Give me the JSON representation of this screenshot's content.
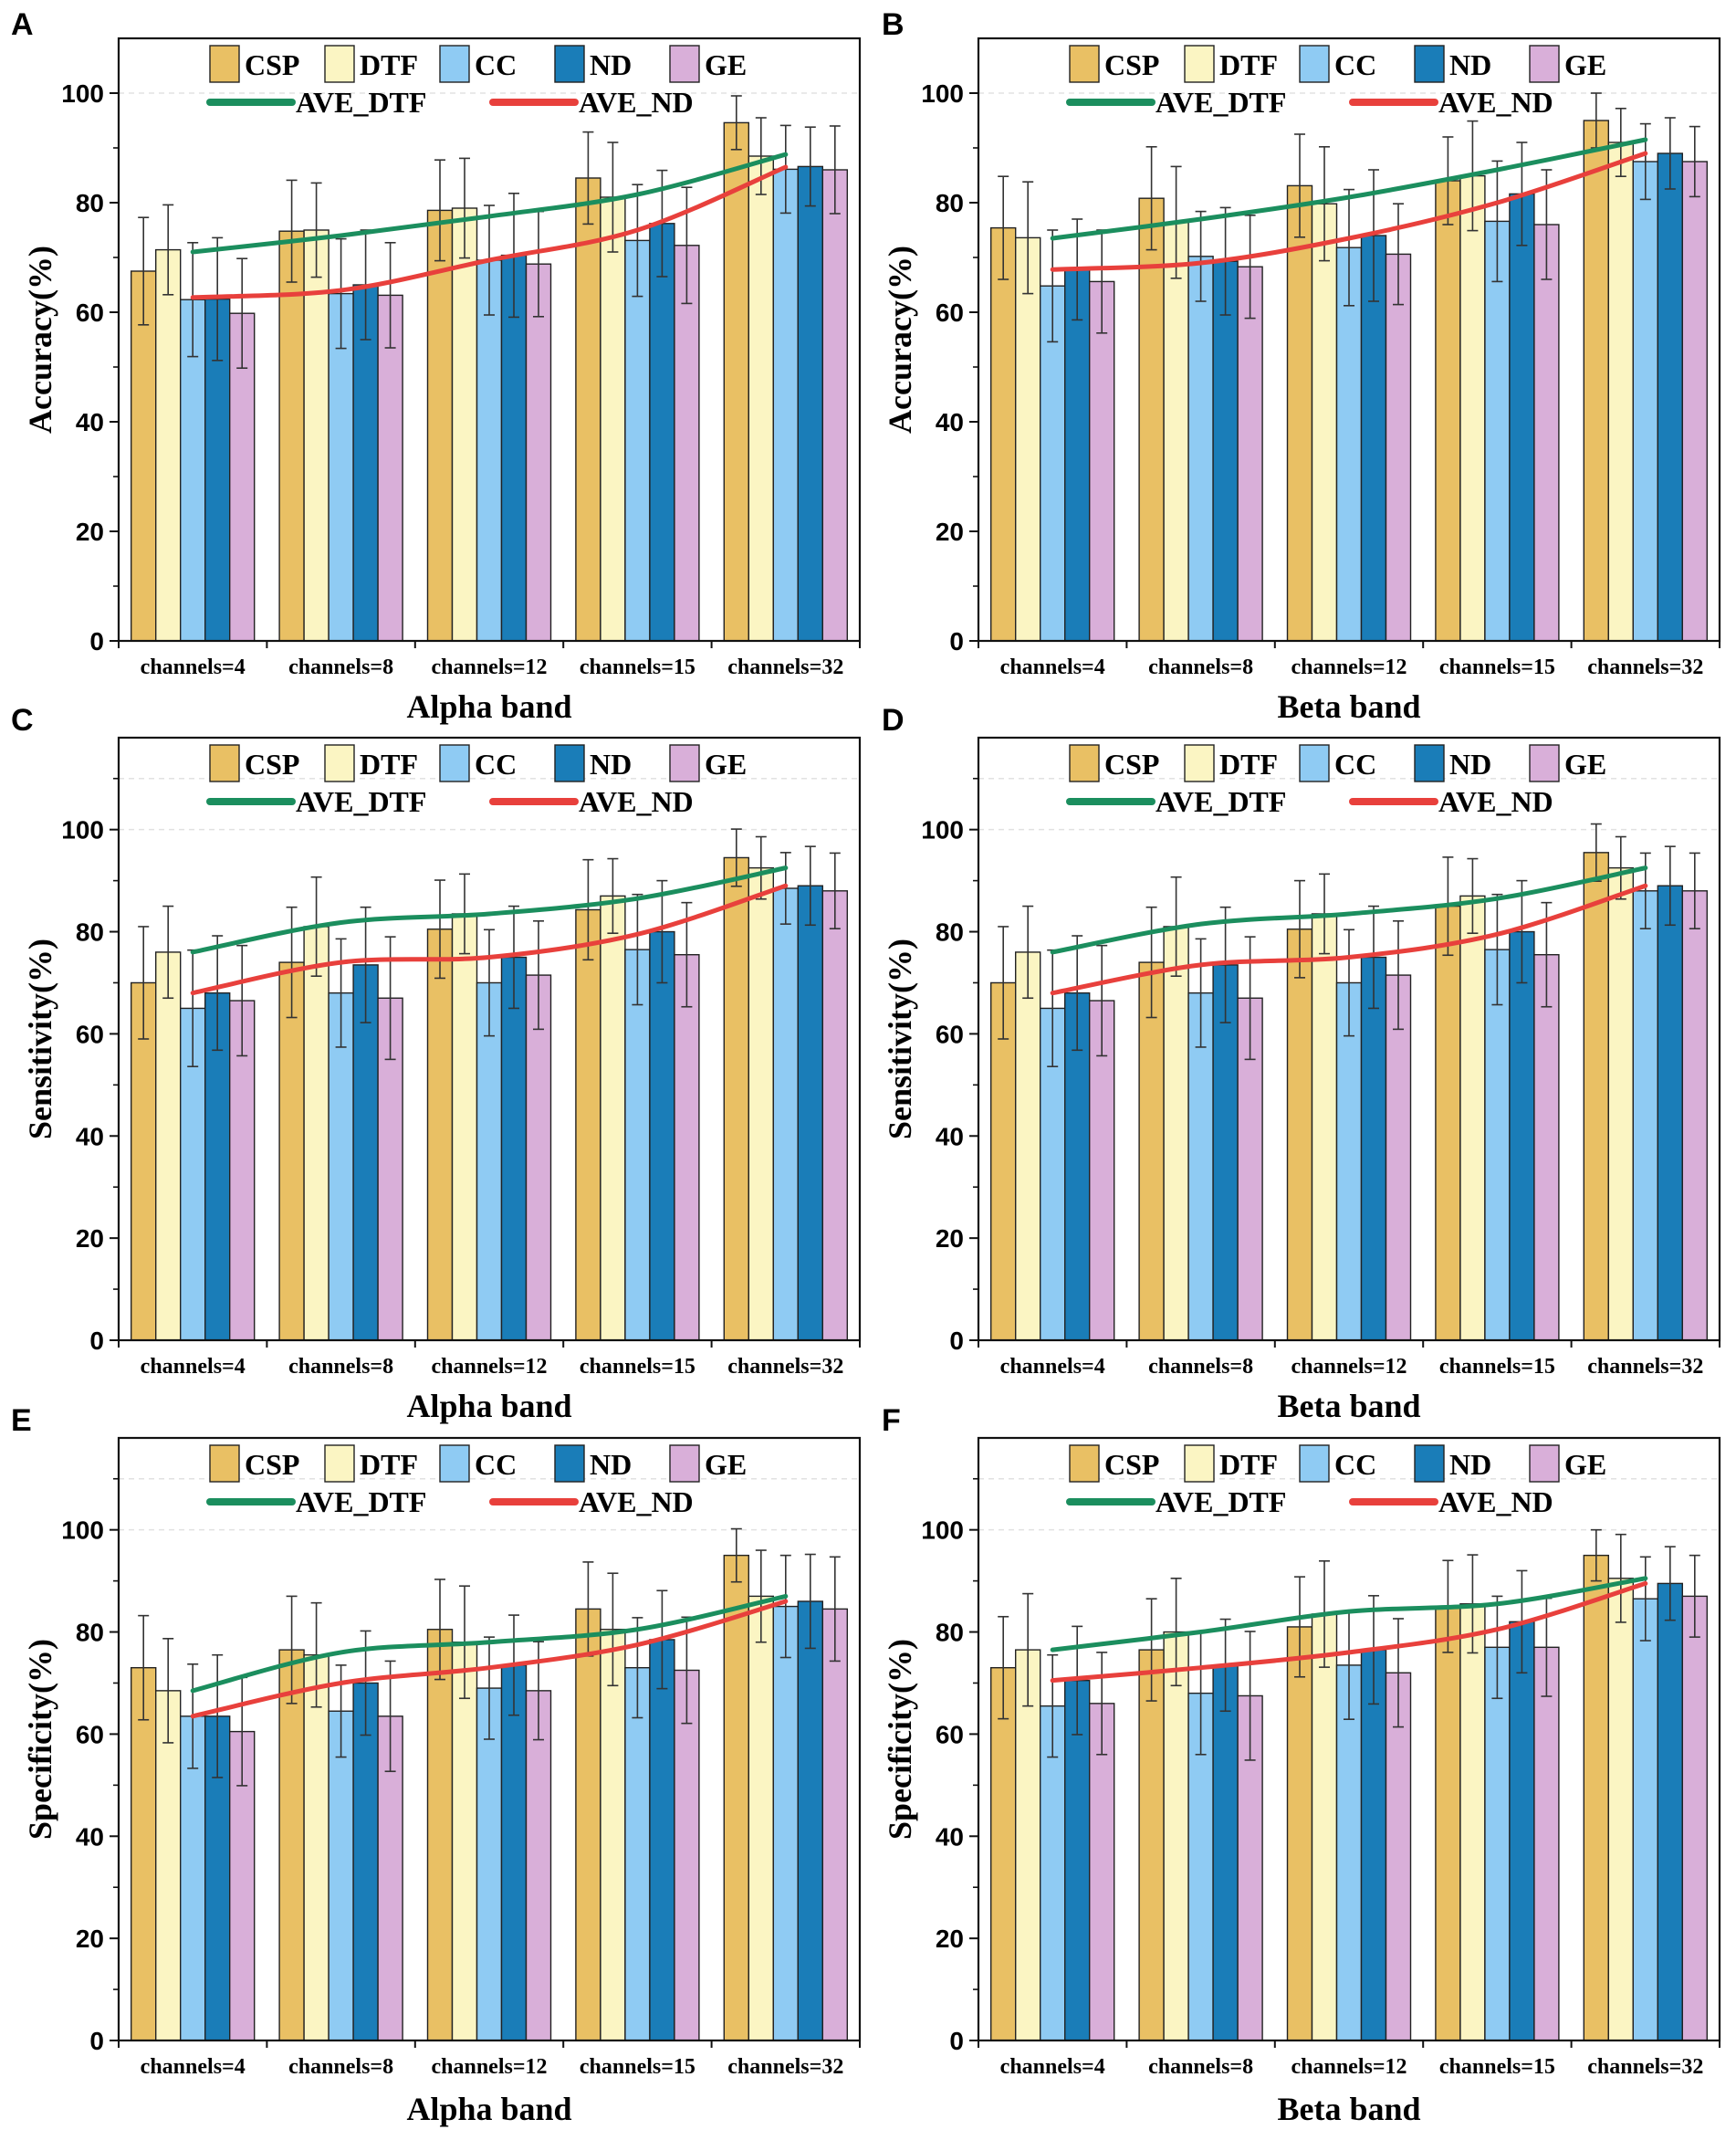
{
  "chart_data": [
    {
      "panel": "A",
      "type": "bar",
      "xlabel": "Alpha band",
      "ylabel": "Accuracy(%)",
      "ylim": [
        0,
        110
      ],
      "yticks": [
        "0",
        "20",
        "40",
        "60",
        "80",
        "100"
      ],
      "categories": [
        "channels=4",
        "channels=8",
        "channels=12",
        "channels=15",
        "channels=32"
      ],
      "series": [
        {
          "name": "CSP",
          "values": [
            67.5,
            74.8,
            78.6,
            84.5,
            94.6
          ],
          "errors": [
            9.8,
            9.3,
            9.2,
            8.4,
            4.9
          ]
        },
        {
          "name": "DTF",
          "values": [
            71.4,
            75.0,
            79.0,
            81.0,
            88.5
          ],
          "errors": [
            8.2,
            8.6,
            9.1,
            10.0,
            7.0
          ]
        },
        {
          "name": "CC",
          "values": [
            62.3,
            63.4,
            69.5,
            73.1,
            86.1
          ],
          "errors": [
            10.4,
            10.0,
            10.0,
            10.2,
            8.0
          ]
        },
        {
          "name": "ND",
          "values": [
            62.4,
            65.0,
            70.4,
            76.2,
            86.6
          ],
          "errors": [
            11.2,
            10.0,
            11.3,
            9.7,
            7.2
          ]
        },
        {
          "name": "GE",
          "values": [
            59.8,
            63.1,
            68.8,
            72.2,
            86.0
          ],
          "errors": [
            10.0,
            9.6,
            9.6,
            10.6,
            8.0
          ]
        }
      ],
      "lines": [
        {
          "name": "AVE_DTF",
          "values": [
            71.0,
            74.0,
            77.5,
            81.5,
            88.8
          ]
        },
        {
          "name": "AVE_ND",
          "values": [
            62.7,
            64.0,
            69.5,
            75.0,
            86.5
          ]
        }
      ]
    },
    {
      "panel": "B",
      "type": "bar",
      "xlabel": "Beta band",
      "ylabel": "Accuracy(%)",
      "ylim": [
        0,
        110
      ],
      "yticks": [
        "0",
        "20",
        "40",
        "60",
        "80",
        "100"
      ],
      "categories": [
        "channels=4",
        "channels=8",
        "channels=12",
        "channels=15",
        "channels=32"
      ],
      "series": [
        {
          "name": "CSP",
          "values": [
            75.4,
            80.8,
            83.1,
            84.0,
            95.0
          ],
          "errors": [
            9.4,
            9.4,
            9.4,
            8.0,
            5.0
          ]
        },
        {
          "name": "DTF",
          "values": [
            73.6,
            76.4,
            79.8,
            84.9,
            91.0
          ],
          "errors": [
            10.2,
            10.2,
            10.4,
            10.0,
            6.2
          ]
        },
        {
          "name": "CC",
          "values": [
            64.8,
            70.2,
            71.8,
            76.6,
            87.5
          ],
          "errors": [
            10.2,
            8.2,
            10.6,
            11.0,
            6.9
          ]
        },
        {
          "name": "ND",
          "values": [
            67.8,
            69.3,
            74.0,
            81.6,
            89.0
          ],
          "errors": [
            9.2,
            9.8,
            12.0,
            9.4,
            6.5
          ]
        },
        {
          "name": "GE",
          "values": [
            65.6,
            68.3,
            70.6,
            76.0,
            87.5
          ],
          "errors": [
            9.4,
            9.4,
            9.2,
            10.0,
            6.4
          ]
        }
      ],
      "lines": [
        {
          "name": "AVE_DTF",
          "values": [
            73.5,
            77.0,
            81.0,
            86.0,
            91.5
          ]
        },
        {
          "name": "AVE_ND",
          "values": [
            67.8,
            69.0,
            73.5,
            80.0,
            89.0
          ]
        }
      ]
    },
    {
      "panel": "C",
      "type": "bar",
      "xlabel": "Alpha band",
      "ylabel": "Sensitivity(%)",
      "ylim": [
        0,
        118
      ],
      "yticks": [
        "0",
        "20",
        "40",
        "60",
        "80",
        "100"
      ],
      "categories": [
        "channels=4",
        "channels=8",
        "channels=12",
        "channels=15",
        "channels=32"
      ],
      "series": [
        {
          "name": "CSP",
          "values": [
            70.0,
            74.0,
            80.5,
            84.3,
            94.5
          ],
          "errors": [
            11.0,
            10.8,
            9.6,
            9.8,
            5.6
          ]
        },
        {
          "name": "DTF",
          "values": [
            76.0,
            81.0,
            83.5,
            87.0,
            92.5
          ],
          "errors": [
            9.0,
            9.7,
            7.8,
            7.3,
            6.1
          ]
        },
        {
          "name": "CC",
          "values": [
            65.0,
            68.0,
            70.0,
            76.5,
            88.5
          ],
          "errors": [
            11.4,
            10.6,
            10.4,
            10.8,
            7.0
          ]
        },
        {
          "name": "ND",
          "values": [
            68.0,
            73.5,
            75.0,
            80.0,
            89.0
          ],
          "errors": [
            11.2,
            11.3,
            10.0,
            10.0,
            7.7
          ]
        },
        {
          "name": "GE",
          "values": [
            66.5,
            67.0,
            71.5,
            75.5,
            88.0
          ],
          "errors": [
            10.8,
            12.0,
            10.6,
            10.2,
            7.4
          ]
        }
      ],
      "lines": [
        {
          "name": "AVE_DTF",
          "values": [
            76.0,
            81.8,
            83.5,
            86.5,
            92.5
          ]
        },
        {
          "name": "AVE_ND",
          "values": [
            68.0,
            74.0,
            75.0,
            79.5,
            89.0
          ]
        }
      ]
    },
    {
      "panel": "D",
      "type": "bar",
      "xlabel": "Beta band",
      "ylabel": "Sensitivity(%)",
      "ylim": [
        0,
        118
      ],
      "yticks": [
        "0",
        "20",
        "40",
        "60",
        "80",
        "100"
      ],
      "categories": [
        "channels=4",
        "channels=8",
        "channels=12",
        "channels=15",
        "channels=32"
      ],
      "series": [
        {
          "name": "CSP",
          "values": [
            70.0,
            74.0,
            80.5,
            85.0,
            95.5
          ],
          "errors": [
            11.0,
            10.8,
            9.5,
            9.6,
            5.6
          ]
        },
        {
          "name": "DTF",
          "values": [
            76.0,
            81.0,
            83.5,
            87.0,
            92.5
          ],
          "errors": [
            9.0,
            9.7,
            7.8,
            7.3,
            6.1
          ]
        },
        {
          "name": "CC",
          "values": [
            65.0,
            68.0,
            70.0,
            76.5,
            88.0
          ],
          "errors": [
            11.4,
            10.6,
            10.4,
            10.8,
            7.4
          ]
        },
        {
          "name": "ND",
          "values": [
            68.0,
            73.5,
            75.0,
            80.0,
            89.0
          ],
          "errors": [
            11.2,
            11.3,
            10.0,
            10.0,
            7.7
          ]
        },
        {
          "name": "GE",
          "values": [
            66.5,
            67.0,
            71.5,
            75.5,
            88.0
          ],
          "errors": [
            10.8,
            12.0,
            10.6,
            10.2,
            7.4
          ]
        }
      ],
      "lines": [
        {
          "name": "AVE_DTF",
          "values": [
            76.0,
            81.5,
            83.5,
            86.5,
            92.5
          ]
        },
        {
          "name": "AVE_ND",
          "values": [
            68.0,
            73.5,
            75.0,
            79.5,
            89.0
          ]
        }
      ]
    },
    {
      "panel": "E",
      "type": "bar",
      "xlabel": "Alpha band",
      "ylabel": "Specificity(%)",
      "ylim": [
        0,
        118
      ],
      "yticks": [
        "0",
        "20",
        "40",
        "60",
        "80",
        "100"
      ],
      "categories": [
        "channels=4",
        "channels=8",
        "channels=12",
        "channels=15",
        "channels=32"
      ],
      "series": [
        {
          "name": "CSP",
          "values": [
            73.0,
            76.5,
            80.5,
            84.5,
            95.0
          ],
          "errors": [
            10.2,
            10.5,
            9.8,
            9.2,
            5.2
          ]
        },
        {
          "name": "DTF",
          "values": [
            68.5,
            75.5,
            78.0,
            80.5,
            87.0
          ],
          "errors": [
            10.2,
            10.2,
            11.0,
            11.0,
            9.0
          ]
        },
        {
          "name": "CC",
          "values": [
            63.5,
            64.5,
            69.0,
            73.0,
            85.0
          ],
          "errors": [
            10.2,
            9.0,
            10.0,
            9.8,
            10.0
          ]
        },
        {
          "name": "ND",
          "values": [
            63.5,
            70.0,
            73.5,
            78.5,
            86.0
          ],
          "errors": [
            12.0,
            10.2,
            9.8,
            9.6,
            9.2
          ]
        },
        {
          "name": "GE",
          "values": [
            60.5,
            63.5,
            68.5,
            72.5,
            84.5
          ],
          "errors": [
            10.6,
            10.8,
            9.6,
            10.4,
            10.2
          ]
        }
      ],
      "lines": [
        {
          "name": "AVE_DTF",
          "values": [
            68.5,
            76.0,
            78.0,
            80.5,
            87.0
          ]
        },
        {
          "name": "AVE_ND",
          "values": [
            63.5,
            70.0,
            73.0,
            77.5,
            86.0
          ]
        }
      ]
    },
    {
      "panel": "F",
      "type": "bar",
      "xlabel": "Beta band",
      "ylabel": "Specificity(%)",
      "ylim": [
        0,
        118
      ],
      "yticks": [
        "0",
        "20",
        "40",
        "60",
        "80",
        "100"
      ],
      "categories": [
        "channels=4",
        "channels=8",
        "channels=12",
        "channels=15",
        "channels=32"
      ],
      "series": [
        {
          "name": "CSP",
          "values": [
            73.0,
            76.5,
            81.0,
            85.0,
            95.0
          ],
          "errors": [
            10.0,
            10.0,
            9.8,
            9.0,
            5.0
          ]
        },
        {
          "name": "DTF",
          "values": [
            76.5,
            80.0,
            83.5,
            85.5,
            90.5
          ],
          "errors": [
            11.0,
            10.5,
            10.4,
            9.6,
            8.6
          ]
        },
        {
          "name": "CC",
          "values": [
            65.5,
            68.0,
            73.5,
            77.0,
            86.5
          ],
          "errors": [
            10.0,
            12.0,
            10.6,
            10.0,
            8.2
          ]
        },
        {
          "name": "ND",
          "values": [
            70.5,
            73.5,
            76.5,
            82.0,
            89.5
          ],
          "errors": [
            10.6,
            9.0,
            10.6,
            10.0,
            7.2
          ]
        },
        {
          "name": "GE",
          "values": [
            66.0,
            67.5,
            72.0,
            77.0,
            87.0
          ],
          "errors": [
            10.0,
            12.6,
            10.6,
            9.6,
            8.0
          ]
        }
      ],
      "lines": [
        {
          "name": "AVE_DTF",
          "values": [
            76.5,
            80.0,
            84.0,
            85.5,
            90.5
          ]
        },
        {
          "name": "AVE_ND",
          "values": [
            70.5,
            73.0,
            76.0,
            80.5,
            89.5
          ]
        }
      ]
    }
  ],
  "colors": {
    "CSP": "#E9C064",
    "DTF": "#FBF5C3",
    "CC": "#8FCBF3",
    "ND": "#1A7DB8",
    "GE": "#D9AFD9",
    "AVE_DTF": "#1B8E5E",
    "AVE_ND": "#E8403C"
  }
}
